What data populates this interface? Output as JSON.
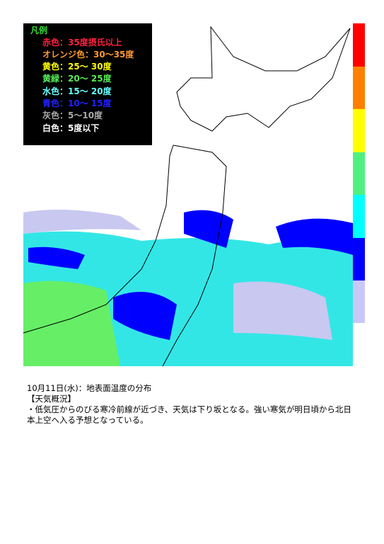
{
  "legend": {
    "title": "凡例",
    "items": [
      "赤色：35度摂氏以上",
      "オレンジ色：30～35度",
      "黄色：25～ 30度",
      "黄緑：20～ 25度",
      "水色：15～ 20度",
      "青色：10～ 15度",
      "灰色：5～10度",
      "白色：5度以下"
    ]
  },
  "caption": {
    "date": "10月11日(水)：地表面温度の分布",
    "heading": "【天気概況】",
    "body": "・低気圧からのびる寒冷前線が近づき、天気は下り坂となる。強い寒気が明日頃から北日本上空へ入る予想となっている。"
  }
}
